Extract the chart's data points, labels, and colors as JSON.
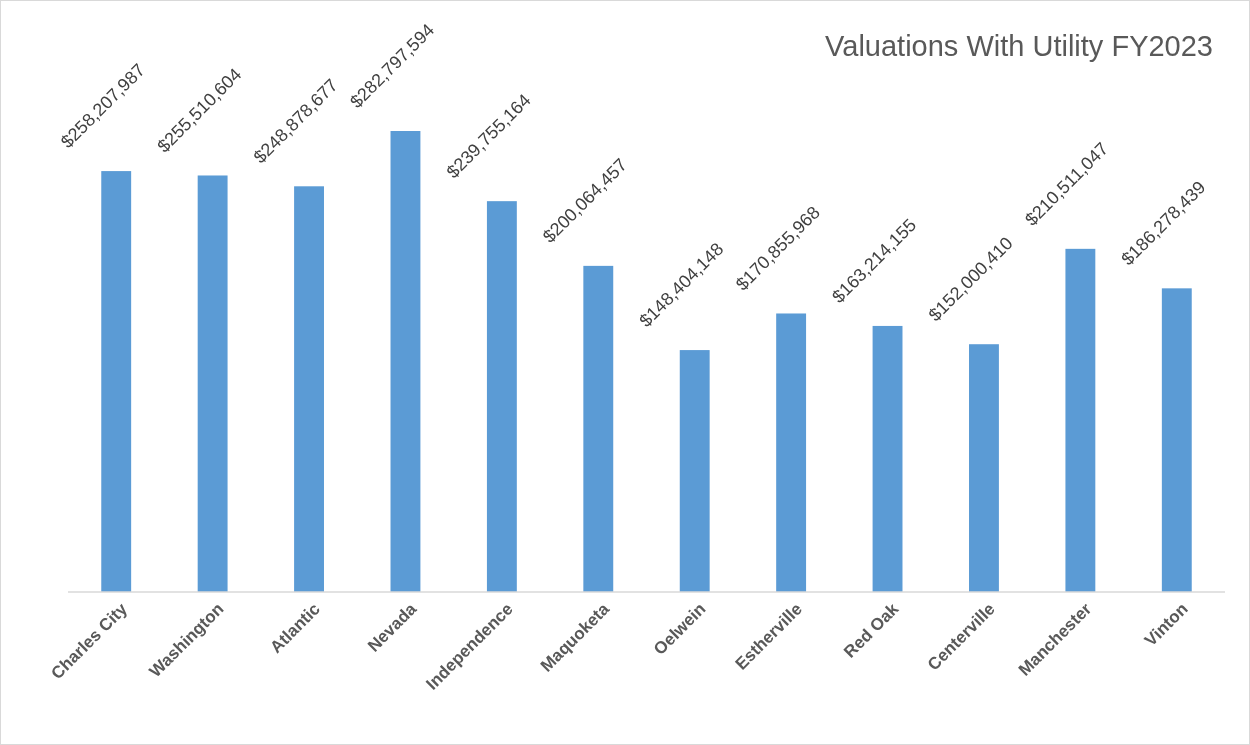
{
  "chart_data": {
    "type": "bar",
    "title": "Valuations With Utility FY2023",
    "categories": [
      "Charles City",
      "Washington",
      "Atlantic",
      "Nevada",
      "Independence",
      "Maquoketa",
      "Oelwein",
      "Estherville",
      "Red Oak",
      "Centerville",
      "Manchester",
      "Vinton"
    ],
    "values": [
      258207987,
      255510604,
      248878677,
      282797594,
      239755164,
      200064457,
      148404148,
      170855968,
      163214155,
      152000410,
      210511047,
      186278439
    ],
    "value_labels": [
      "$258,207,987",
      "$255,510,604",
      "$248,878,677",
      "$282,797,594",
      "$239,755,164",
      "$200,064,457",
      "$148,404,148",
      "$170,855,968",
      "$163,214,155",
      "$152,000,410",
      "$210,511,047",
      "$186,278,439"
    ],
    "color": "#5b9bd5"
  }
}
